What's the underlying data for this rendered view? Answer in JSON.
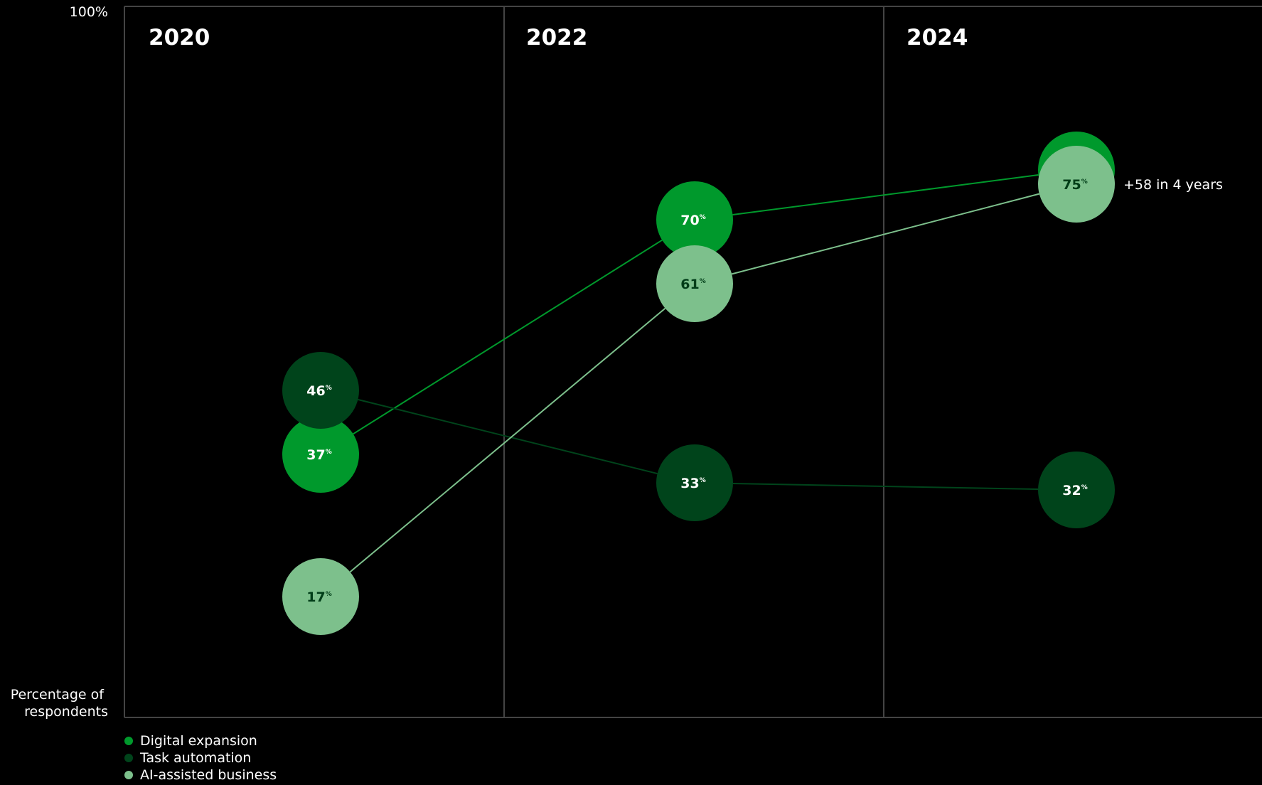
{
  "chart_data": {
    "type": "line",
    "x": [
      "2020",
      "2022",
      "2024"
    ],
    "y_axis": {
      "top_label": "100%",
      "label": "Percentage of respondents",
      "ylim": [
        0,
        100
      ]
    },
    "unit": "%",
    "series": [
      {
        "name": "Digital expansion",
        "color": "#00992C",
        "values": [
          37,
          70,
          77
        ]
      },
      {
        "name": "Task automation",
        "color": "#00441B",
        "values": [
          46,
          33,
          32
        ]
      },
      {
        "name": "AI-assisted business",
        "color": "#7DC08C",
        "values": [
          17,
          61,
          75
        ]
      }
    ],
    "annotation": {
      "series": "AI-assisted business",
      "text": "+58 in 4 years"
    }
  }
}
